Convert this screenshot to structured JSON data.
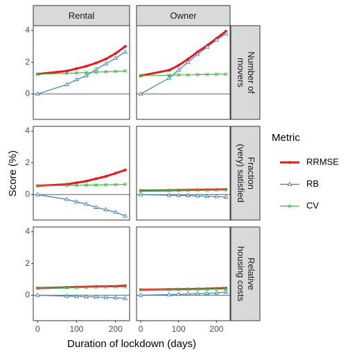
{
  "chart_data": {
    "type": "line",
    "xlabel": "Duration of lockdown (days)",
    "ylabel": "Score (%)",
    "legend_title": "Metric",
    "columns": [
      "Rental",
      "Owner"
    ],
    "rows": [
      [
        "Number of",
        "movers"
      ],
      [
        "Fraction",
        "(very) satisfied"
      ],
      [
        "Relative",
        "housing costs"
      ]
    ],
    "x": [
      0,
      75,
      100,
      125,
      150,
      175,
      200,
      225
    ],
    "xlim": [
      -11,
      236
    ],
    "xticks": [
      0,
      100,
      200
    ],
    "ylim": [
      -1.6,
      4.3
    ],
    "yticks": [
      0,
      2,
      4
    ],
    "hline": 0,
    "series": [
      {
        "name": "RRMSE",
        "color": "#e41a1c",
        "marker": "circle",
        "width": 3,
        "values": [
          [
            1.25,
            1.45,
            1.6,
            1.75,
            1.95,
            2.2,
            2.55,
            3.0
          ],
          [
            1.15,
            1.5,
            1.8,
            2.2,
            2.65,
            3.05,
            3.5,
            3.95
          ],
          [
            0.55,
            0.65,
            0.75,
            0.85,
            1.0,
            1.15,
            1.35,
            1.55
          ],
          [
            0.25,
            0.27,
            0.28,
            0.29,
            0.3,
            0.31,
            0.32,
            0.33
          ],
          [
            0.45,
            0.5,
            0.52,
            0.53,
            0.55,
            0.56,
            0.57,
            0.6
          ],
          [
            0.35,
            0.37,
            0.38,
            0.39,
            0.4,
            0.41,
            0.43,
            0.45
          ]
        ]
      },
      {
        "name": "RB",
        "color": "#377eb8",
        "marker": "triangle",
        "width": 1.2,
        "values": [
          [
            0,
            0.6,
            0.9,
            1.15,
            1.55,
            1.9,
            2.25,
            2.65
          ],
          [
            0,
            1.0,
            1.5,
            2.0,
            2.5,
            2.95,
            3.4,
            3.8
          ],
          [
            0,
            -0.3,
            -0.45,
            -0.6,
            -0.8,
            -0.95,
            -1.1,
            -1.35
          ],
          [
            0,
            -0.04,
            -0.05,
            -0.06,
            -0.08,
            -0.1,
            -0.12,
            -0.15
          ],
          [
            0,
            -0.05,
            -0.07,
            -0.09,
            -0.11,
            -0.13,
            -0.15,
            -0.2
          ],
          [
            0,
            0.04,
            0.06,
            0.08,
            0.1,
            0.12,
            0.15,
            0.2
          ]
        ]
      },
      {
        "name": "CV",
        "color": "#4daf4a",
        "marker": "x",
        "width": 1.2,
        "values": [
          [
            1.25,
            1.3,
            1.32,
            1.35,
            1.37,
            1.4,
            1.42,
            1.45
          ],
          [
            1.15,
            1.18,
            1.2,
            1.2,
            1.22,
            1.23,
            1.24,
            1.25
          ],
          [
            0.55,
            0.58,
            0.58,
            0.6,
            0.6,
            0.62,
            0.63,
            0.65
          ],
          [
            0.25,
            0.26,
            0.27,
            0.27,
            0.28,
            0.28,
            0.29,
            0.3
          ],
          [
            0.45,
            0.48,
            0.49,
            0.5,
            0.51,
            0.52,
            0.52,
            0.53
          ],
          [
            0.35,
            0.36,
            0.37,
            0.37,
            0.38,
            0.38,
            0.39,
            0.4
          ]
        ]
      }
    ]
  }
}
